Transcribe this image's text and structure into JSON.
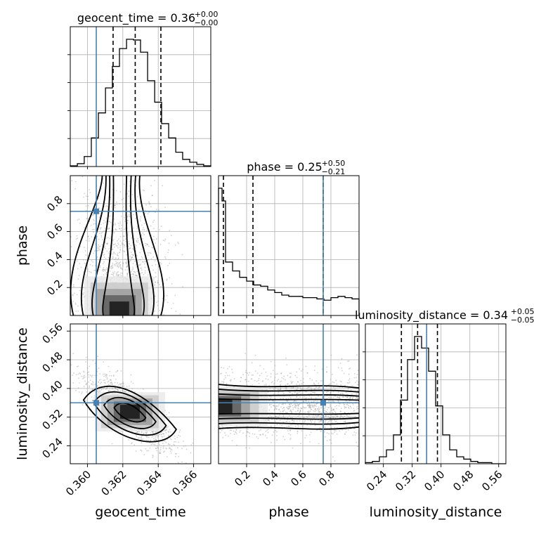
{
  "chart_data": {
    "type": "corner",
    "parameters": [
      "geocent_time",
      "phase",
      "luminosity_distance"
    ],
    "grid": true,
    "truth_color": "#4682b4",
    "truths": {
      "geocent_time": 0.3605,
      "phase": 0.745,
      "luminosity_distance": 0.36
    },
    "titles": [
      {
        "param": "geocent_time",
        "text": "geocent_time = 0.36",
        "sup": "+0.00",
        "sub": "−0.00"
      },
      {
        "param": "phase",
        "text": "phase = 0.25",
        "sup": "+0.50",
        "sub": "−0.21"
      },
      {
        "param": "luminosity_distance",
        "text": "luminosity_distance = 0.34",
        "sup": "+0.05",
        "sub": "−0.05"
      }
    ],
    "axes": {
      "geocent_time": {
        "range": [
          0.35903,
          0.36697
        ],
        "ticks": [
          0.36,
          0.362,
          0.364,
          0.366
        ],
        "tick_labels": [
          "0.360",
          "0.362",
          "0.364",
          "0.366"
        ],
        "label": "geocent_time"
      },
      "phase": {
        "range": [
          0.0,
          1.0
        ],
        "ticks": [
          0.2,
          0.4,
          0.6,
          0.8
        ],
        "tick_labels": [
          "0.2",
          "0.4",
          "0.6",
          "0.8"
        ],
        "label": "phase"
      },
      "luminosity_distance": {
        "range": [
          0.19,
          0.58
        ],
        "ticks": [
          0.24,
          0.32,
          0.4,
          0.48,
          0.56
        ],
        "tick_labels": [
          "0.24",
          "0.32",
          "0.40",
          "0.48",
          "0.56"
        ],
        "label": "luminosity_distance"
      }
    },
    "histograms": [
      {
        "param": "geocent_time",
        "bin_edges": [
          0.35903,
          0.35943,
          0.35982,
          0.36022,
          0.36062,
          0.36102,
          0.36141,
          0.36181,
          0.36221,
          0.3626,
          0.363,
          0.3634,
          0.3638,
          0.36419,
          0.36459,
          0.36499,
          0.36538,
          0.36578,
          0.36618,
          0.36657,
          0.36697
        ],
        "counts": [
          1,
          4,
          14,
          40,
          75,
          110,
          140,
          165,
          178,
          177,
          160,
          120,
          90,
          60,
          40,
          20,
          10,
          6,
          3,
          1
        ],
        "quantiles": [
          0.36145,
          0.3627,
          0.36415
        ]
      },
      {
        "param": "phase",
        "bin_edges": [
          0.0,
          0.025,
          0.05,
          0.1,
          0.15,
          0.2,
          0.25,
          0.3,
          0.35,
          0.4,
          0.45,
          0.5,
          0.55,
          0.6,
          0.65,
          0.7,
          0.75,
          0.8,
          0.85,
          0.9,
          0.95,
          1.0
        ],
        "counts": [
          1.0,
          0.9,
          0.42,
          0.35,
          0.3,
          0.27,
          0.24,
          0.23,
          0.2,
          0.18,
          0.16,
          0.15,
          0.15,
          0.14,
          0.14,
          0.13,
          0.12,
          0.14,
          0.15,
          0.14,
          0.13
        ],
        "quantiles": [
          0.035,
          0.245,
          0.745
        ]
      },
      {
        "param": "luminosity_distance",
        "bin_edges": [
          0.19,
          0.2095,
          0.229,
          0.2485,
          0.268,
          0.2875,
          0.307,
          0.3265,
          0.346,
          0.3655,
          0.385,
          0.4045,
          0.424,
          0.4435,
          0.463,
          0.4825,
          0.502,
          0.5215,
          0.541,
          0.5605,
          0.58
        ],
        "counts": [
          1,
          2,
          6,
          12,
          25,
          55,
          90,
          110,
          100,
          80,
          50,
          25,
          12,
          6,
          4,
          2,
          1,
          1,
          0,
          0
        ],
        "quantiles": [
          0.29,
          0.335,
          0.39
        ]
      }
    ],
    "hist2d": [
      {
        "x": "geocent_time",
        "y": "phase",
        "density_mode": {
          "x": 0.3618,
          "y": 0.03
        },
        "contour_levels": 4
      },
      {
        "x": "geocent_time",
        "y": "luminosity_distance",
        "density_mode": {
          "x": 0.3624,
          "y": 0.335
        },
        "correlation": "negative",
        "contour_levels": 4
      },
      {
        "x": "phase",
        "y": "luminosity_distance",
        "density_mode": {
          "x": 0.02,
          "y": 0.35
        },
        "contour_levels": 4
      }
    ]
  }
}
